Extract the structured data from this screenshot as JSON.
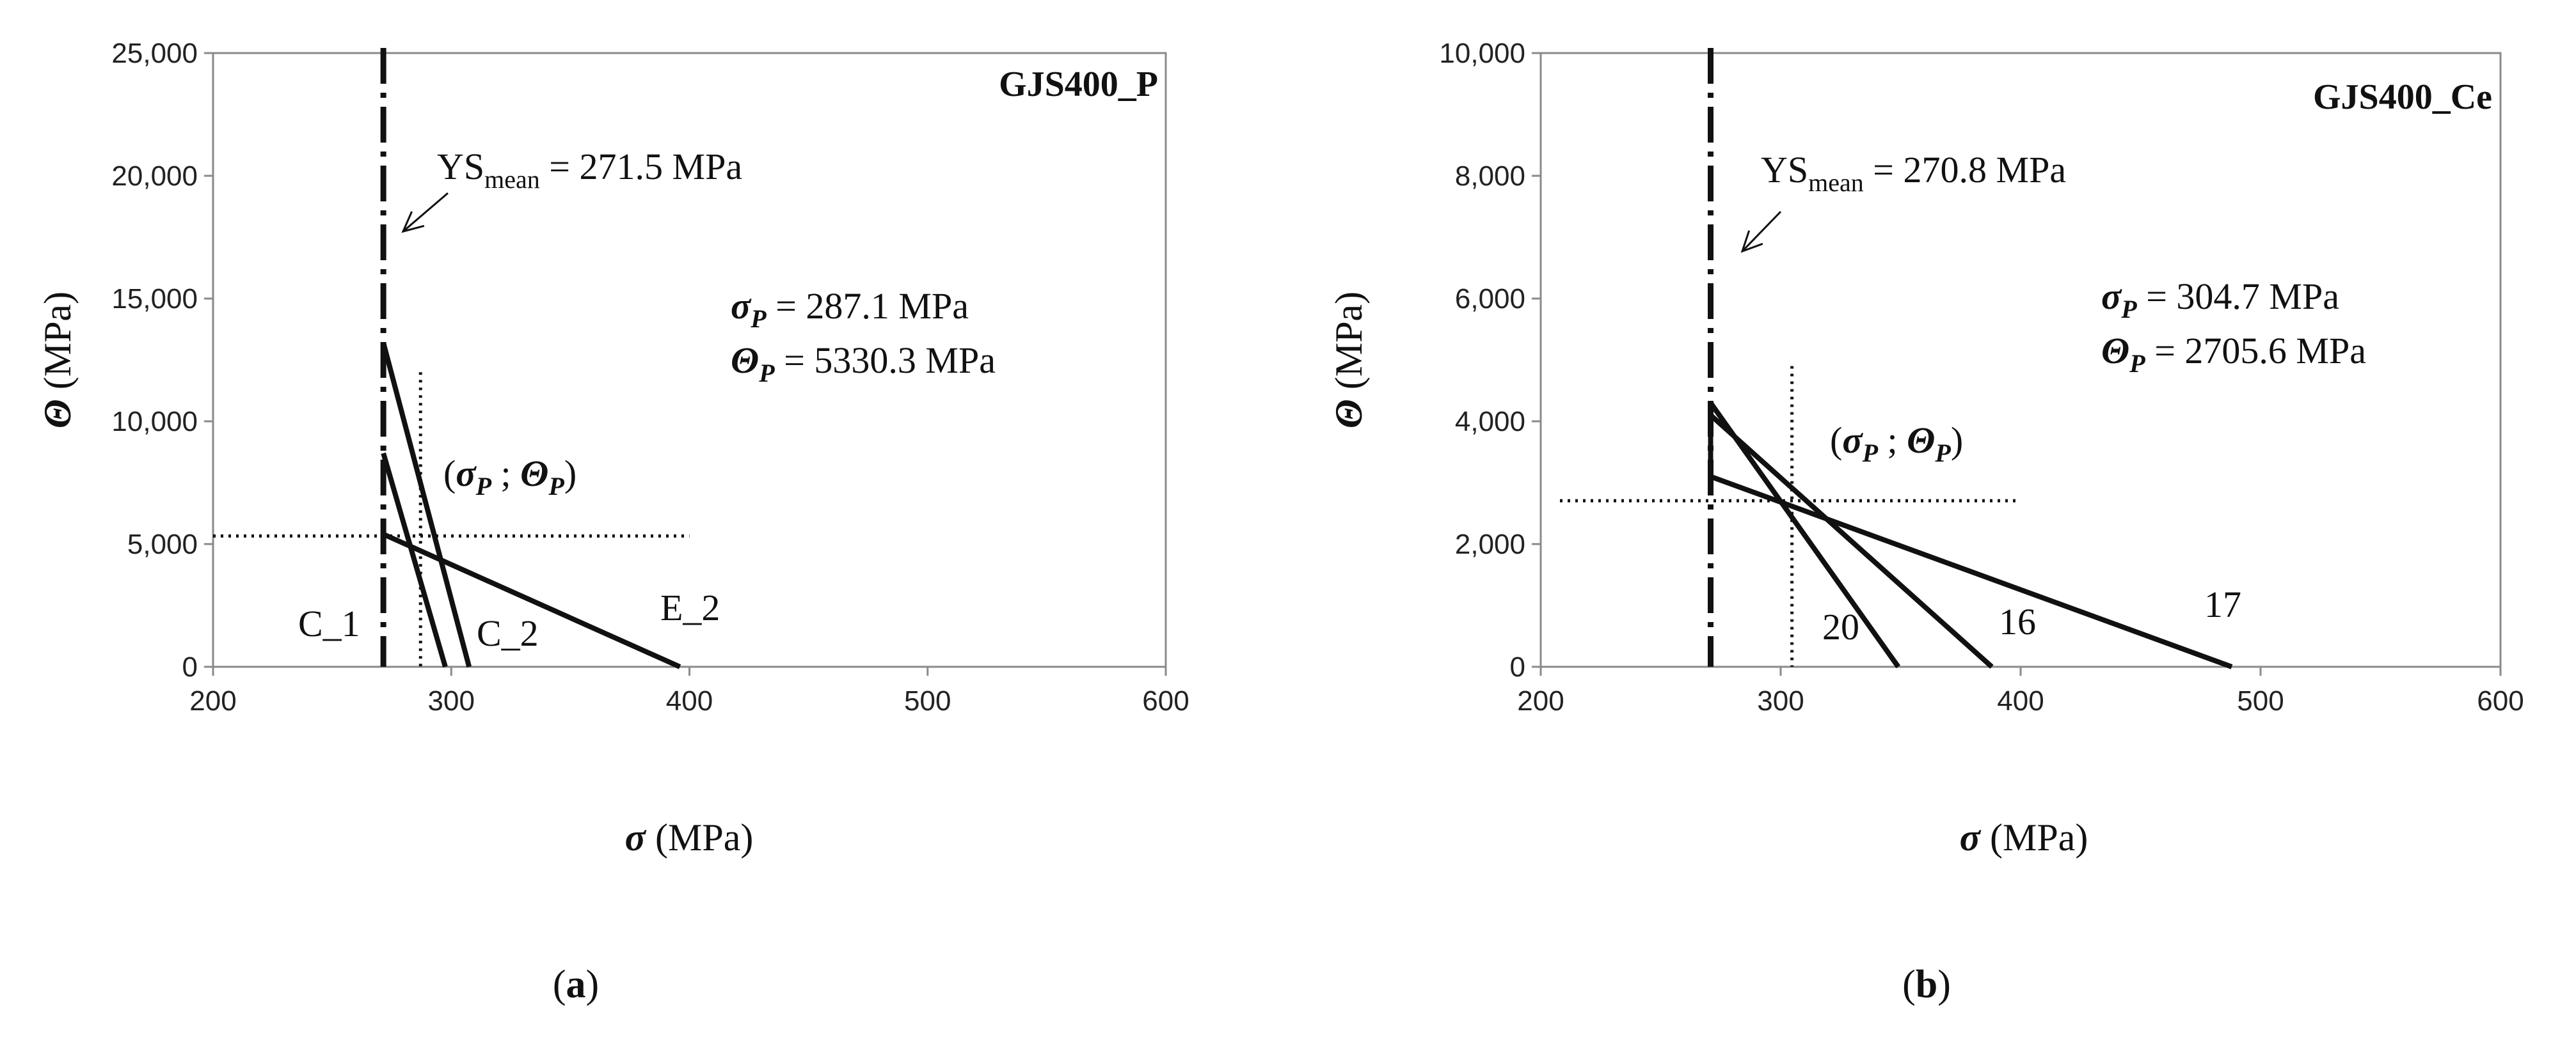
{
  "chart_data": [
    {
      "panel_label_prefix": "(",
      "panel_label_letter": "a",
      "panel_label_suffix": ")",
      "type": "line",
      "title": "GJS400_P",
      "xlabel_symbol": "σ",
      "xlabel_unit": "(MPa)",
      "ylabel_symbol": "Θ",
      "ylabel_unit": "(MPa)",
      "xlim": [
        200,
        600
      ],
      "ylim": [
        0,
        25000
      ],
      "xticks": [
        "200",
        "300",
        "400",
        "500",
        "600"
      ],
      "yticks": [
        "0",
        "5,000",
        "10,000",
        "15,000",
        "20,000",
        "25,000"
      ],
      "grid": false,
      "ys_mean_prefix": "YS",
      "ys_mean_sub": "mean",
      "ys_mean_value_text": "= 271.5 MPa",
      "ys_mean": 271.5,
      "sigma_p_text": "= 287.1 MPa",
      "theta_p_text": "= 5330.3 MPa",
      "point_label_open": "(",
      "point_label_sep": ";",
      "point_label_close": ")",
      "sub_p": "P",
      "sigma_p": 287.1,
      "theta_p": 5330.3,
      "series": [
        {
          "name": "C_1",
          "x": [
            271.5,
            297.5
          ],
          "y": [
            8700,
            0
          ]
        },
        {
          "name": "C_2",
          "x": [
            271.5,
            307.5
          ],
          "y": [
            13200,
            0
          ]
        },
        {
          "name": "E_2",
          "x": [
            271.5,
            396
          ],
          "y": [
            5400,
            0
          ]
        }
      ]
    },
    {
      "panel_label_prefix": "(",
      "panel_label_letter": "b",
      "panel_label_suffix": ")",
      "type": "line",
      "title": "GJS400_Ce",
      "xlabel_symbol": "σ",
      "xlabel_unit": "(MPa)",
      "ylabel_symbol": "Θ",
      "ylabel_unit": "(MPa)",
      "xlim": [
        200,
        600
      ],
      "ylim": [
        0,
        10000
      ],
      "xticks": [
        "200",
        "300",
        "400",
        "500",
        "600"
      ],
      "yticks": [
        "0",
        "2,000",
        "4,000",
        "6,000",
        "8,000",
        "10,000"
      ],
      "grid": false,
      "ys_mean_prefix": "YS",
      "ys_mean_sub": "mean",
      "ys_mean_value_text": "= 270.8 MPa",
      "ys_mean": 270.8,
      "sigma_p_text": "= 304.7 MPa",
      "theta_p_text": "= 2705.6 MPa",
      "point_label_open": "(",
      "point_label_sep": ";",
      "point_label_close": ")",
      "sub_p": "P",
      "sigma_p": 304.7,
      "theta_p": 2705.6,
      "series": [
        {
          "name": "20",
          "x": [
            270.8,
            349
          ],
          "y": [
            4300,
            0
          ]
        },
        {
          "name": "16",
          "x": [
            270.8,
            388
          ],
          "y": [
            4100,
            0
          ]
        },
        {
          "name": "17",
          "x": [
            270.8,
            270.8,
            488
          ],
          "y": [
            4000,
            3100,
            0
          ]
        }
      ]
    }
  ]
}
